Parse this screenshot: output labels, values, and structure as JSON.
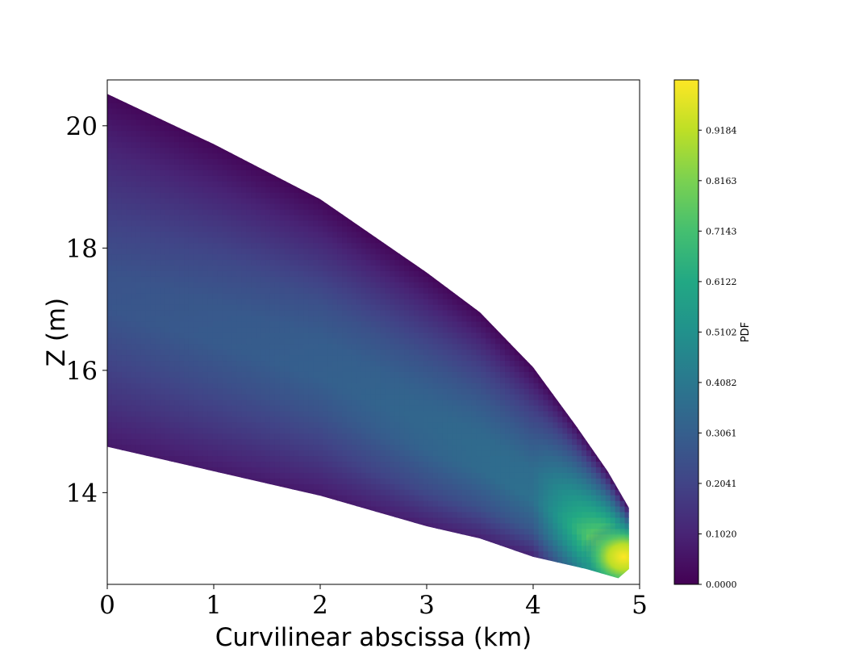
{
  "chart_data": {
    "type": "contour",
    "xlabel": "Curvilinear abscissa (km)",
    "ylabel": "Z (m)",
    "xlim": [
      0,
      5
    ],
    "ylim": [
      12.5,
      20.75
    ],
    "x_ticks": [
      "0",
      "1",
      "2",
      "3",
      "4",
      "5"
    ],
    "y_ticks": [
      "14",
      "16",
      "18",
      "20"
    ],
    "grid": false,
    "colormap": "viridis",
    "colorbar": {
      "label": "PDF",
      "range": [
        0,
        1.02
      ],
      "ticks": [
        "0.0000",
        "0.1020",
        "0.2041",
        "0.3061",
        "0.4082",
        "0.5102",
        "0.6122",
        "0.7143",
        "0.8163",
        "0.9184"
      ]
    },
    "upper_boundary": [
      [
        0,
        20.52
      ],
      [
        1,
        19.7
      ],
      [
        2,
        18.8
      ],
      [
        3,
        17.6
      ],
      [
        3.5,
        16.95
      ],
      [
        4,
        16.05
      ],
      [
        4.4,
        15.1
      ],
      [
        4.7,
        14.35
      ],
      [
        4.9,
        13.75
      ]
    ],
    "lower_boundary": [
      [
        0,
        14.75
      ],
      [
        1,
        14.35
      ],
      [
        2,
        13.95
      ],
      [
        3,
        13.45
      ],
      [
        3.5,
        13.25
      ],
      [
        4,
        12.95
      ],
      [
        4.5,
        12.75
      ],
      [
        4.8,
        12.6
      ]
    ],
    "pdf_levels": [
      {
        "s": 0,
        "z": [
          14.75,
          15.5,
          16.3,
          17.0,
          17.6,
          18.4,
          19.2,
          19.9,
          20.52
        ],
        "pdf": [
          0.07,
          0.15,
          0.22,
          0.27,
          0.26,
          0.2,
          0.14,
          0.08,
          0.02
        ]
      },
      {
        "s": 2,
        "z": [
          13.95,
          14.6,
          15.3,
          15.9,
          16.5,
          17.1,
          17.7,
          18.3,
          18.8
        ],
        "pdf": [
          0.07,
          0.17,
          0.26,
          0.31,
          0.3,
          0.25,
          0.17,
          0.09,
          0.02
        ]
      },
      {
        "s": 4,
        "z": [
          12.95,
          13.4,
          13.9,
          14.4,
          14.9,
          15.4,
          15.8,
          16.05
        ],
        "pdf": [
          0.1,
          0.28,
          0.38,
          0.36,
          0.28,
          0.18,
          0.08,
          0.02
        ]
      },
      {
        "s": 4.85,
        "z": [
          12.6,
          12.9,
          13.2,
          13.5,
          13.75
        ],
        "pdf": [
          0.8,
          1.0,
          0.7,
          0.35,
          0.05
        ]
      }
    ]
  }
}
